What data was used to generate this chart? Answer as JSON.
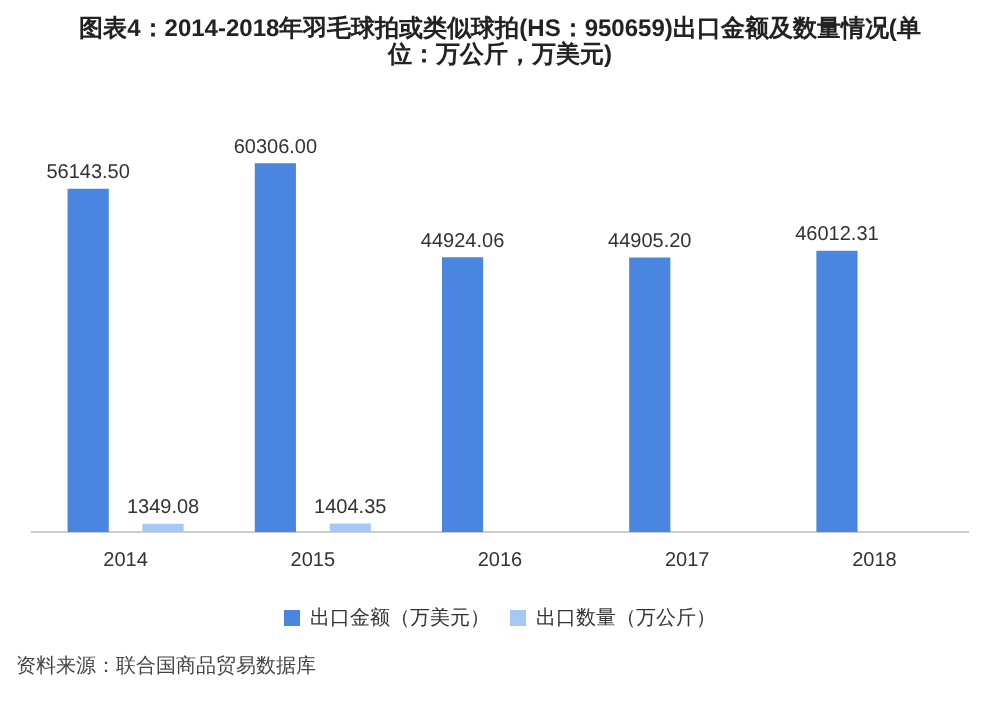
{
  "chart_data": {
    "type": "bar",
    "title": "图表4：2014-2018年羽毛球拍或类似球拍(HS：950659)出口金额及数量情况(单位：万公斤，万美元)",
    "categories": [
      "2014",
      "2015",
      "2016",
      "2017",
      "2018"
    ],
    "series": [
      {
        "name": "出口金额（万美元）",
        "color": "#4a86e0",
        "values": [
          56143.5,
          60306.0,
          44924.06,
          44905.2,
          46012.31
        ],
        "value_labels": [
          "56143.50",
          "60306.00",
          "44924.06",
          "44905.20",
          "46012.31"
        ]
      },
      {
        "name": "出口数量（万公斤）",
        "color": "#a6c8f5",
        "values": [
          1349.08,
          1404.35,
          null,
          null,
          null
        ],
        "value_labels": [
          "1349.08",
          "1404.35",
          null,
          null,
          null
        ]
      }
    ],
    "legend": "bottom",
    "grid": false,
    "annotations": [
      "资料来源：联合国商品贸易数据库"
    ]
  }
}
